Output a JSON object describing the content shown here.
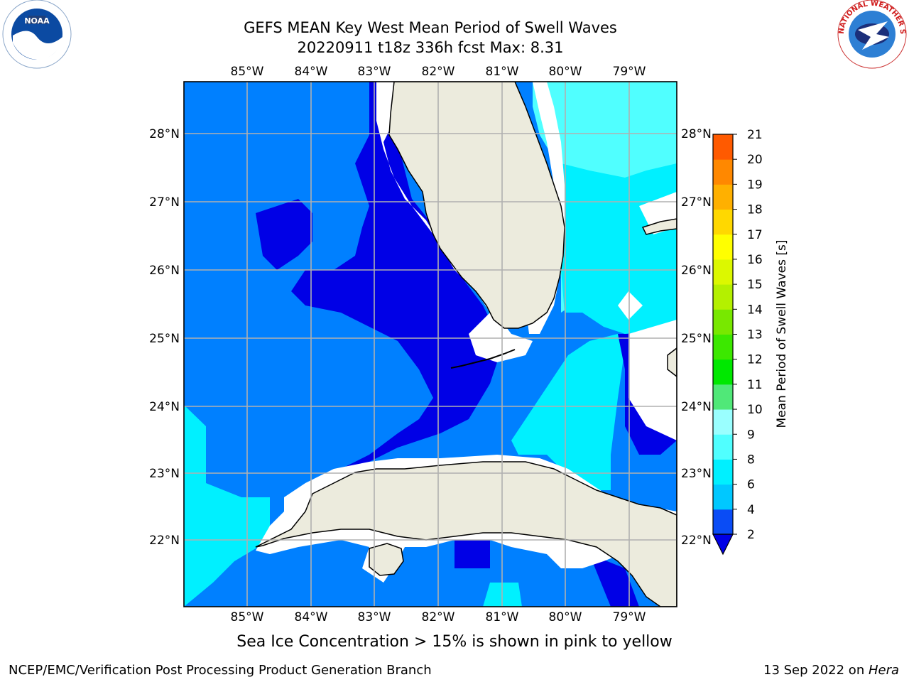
{
  "title": {
    "line1": "GEFS MEAN Key West Mean Period of Swell Waves",
    "line2": "20220911 t18z 336h fcst   Max: 8.31"
  },
  "logos": {
    "left": {
      "name": "noaa-logo",
      "text": "NOAA"
    },
    "right": {
      "name": "nws-logo",
      "text": "NATIONAL WEATHER SERVICE"
    }
  },
  "map": {
    "lon_labels": [
      "85°W",
      "84°W",
      "83°W",
      "82°W",
      "81°W",
      "80°W",
      "79°W"
    ],
    "lat_labels": [
      "28°N",
      "27°N",
      "26°N",
      "25°N",
      "24°N",
      "23°N",
      "22°N"
    ],
    "extent": {
      "lon_min": -86.0,
      "lon_max": -78.3,
      "lat_min": 21.0,
      "lat_max": 28.8
    }
  },
  "colorbar": {
    "label": "Mean Period of Swell Waves [s]",
    "ticks": [
      "2",
      "4",
      "6",
      "8",
      "9",
      "10",
      "11",
      "12",
      "13",
      "14",
      "15",
      "16",
      "17",
      "18",
      "19",
      "20",
      "21"
    ],
    "colors": [
      "#0a4cf5",
      "#00c8ff",
      "#00f0ff",
      "#50ffff",
      "#9affff",
      "#50e878",
      "#00e800",
      "#3ce800",
      "#78e800",
      "#b4f000",
      "#dcf800",
      "#ffff00",
      "#ffd800",
      "#ffb000",
      "#ff8800",
      "#ff5a00",
      "#ff2800",
      "#ff0000"
    ],
    "under_color": "#0000e6"
  },
  "field_colors": {
    "period_2_4_dark": "#0000e6",
    "period_2_4": "#0080ff",
    "period_4_6": "#00f0ff",
    "period_6_8": "#50ffff",
    "land": "#ecebdd",
    "no_data": "#ffffff"
  },
  "note": "Sea Ice Concentration > 15% is shown in pink to yellow",
  "footer": {
    "left": "NCEP/EMC/Verification Post Processing Product Generation Branch",
    "right_date": "13 Sep 2022 on ",
    "right_host": "Hera"
  }
}
